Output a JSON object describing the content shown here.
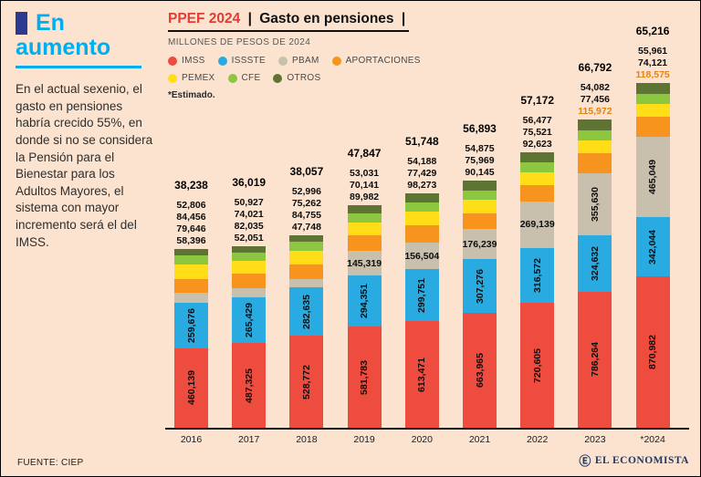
{
  "sidebar": {
    "title_line1": "En",
    "title_line2": "aumento",
    "paragraph": "En el actual sexenio, el gasto en pensiones habría crecido 55%, en donde si no se considera la Pensión para el Bienestar para los Adultos Mayores, el sistema con mayor incremento será el del IMSS.",
    "source": "FUENTE: CIEP"
  },
  "header": {
    "kicker": "PPEF 2024",
    "separator": "|",
    "title": "Gasto en pensiones",
    "subtitle": "MILLONES DE PESOS DE 2024",
    "note": "*Estimado."
  },
  "legend": [
    {
      "label": "IMSS",
      "color": "#ee4c3f"
    },
    {
      "label": "ISSSTE",
      "color": "#29abe2"
    },
    {
      "label": "PBAM",
      "color": "#c8c0ad"
    },
    {
      "label": "APORTACIONES",
      "color": "#f7941e"
    },
    {
      "label": "PEMEX",
      "color": "#ffdd17"
    },
    {
      "label": "CFE",
      "color": "#8dc63f"
    },
    {
      "label": "OTROS",
      "color": "#5e7433"
    }
  ],
  "footer": {
    "brand": "EL ECONOMISTA",
    "mark": "Ⓔ"
  },
  "chart_data": {
    "type": "bar",
    "stacked": true,
    "title": "PPEF 2024 | Gasto en pensiones",
    "subtitle": "Millones de pesos de 2024",
    "note": "*Estimado",
    "source": "CIEP",
    "grid": false,
    "legend_position": "top",
    "bar_value_labels": true,
    "ylim": [
      0,
      2000000
    ],
    "categories": [
      "2016",
      "2017",
      "2018",
      "2019",
      "2020",
      "2021",
      "2022",
      "2023",
      "*2024"
    ],
    "series": [
      {
        "name": "IMSS",
        "color": "#ee4c3f",
        "values": [
          460139,
          487325,
          528772,
          581783,
          613471,
          663965,
          720605,
          786264,
          870982
        ]
      },
      {
        "name": "ISSSTE",
        "color": "#29abe2",
        "values": [
          259676,
          265429,
          282635,
          294351,
          299751,
          307276,
          316572,
          324632,
          342044
        ]
      },
      {
        "name": "PBAM",
        "color": "#c8c0ad",
        "values": [
          58396,
          52051,
          47748,
          145319,
          156504,
          176239,
          269139,
          355630,
          465049
        ]
      },
      {
        "name": "APORTACIONES",
        "color": "#f7941e",
        "values": [
          79646,
          82035,
          84755,
          89982,
          98273,
          90145,
          92623,
          115972,
          118575
        ]
      },
      {
        "name": "PEMEX",
        "color": "#ffdd17",
        "values": [
          84456,
          74021,
          75262,
          70141,
          77429,
          75969,
          75521,
          77456,
          74121
        ]
      },
      {
        "name": "CFE",
        "color": "#8dc63f",
        "values": [
          52806,
          50927,
          52996,
          53031,
          54188,
          54875,
          56477,
          54082,
          55961
        ]
      },
      {
        "name": "OTROS",
        "color": "#5e7433",
        "values": [
          38238,
          36019,
          38057,
          47847,
          51748,
          56893,
          57172,
          66792,
          65216
        ]
      }
    ]
  }
}
